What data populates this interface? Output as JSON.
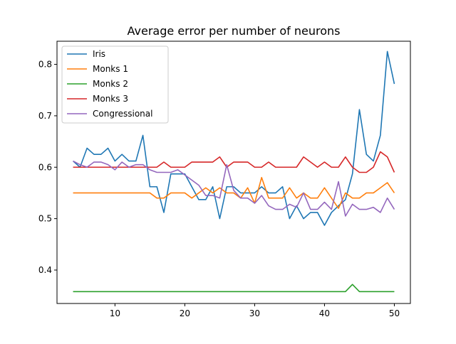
{
  "chart_data": {
    "type": "line",
    "title": "Average error per number of neurons",
    "xlabel": "",
    "ylabel": "",
    "xlim": [
      1.7,
      52.3
    ],
    "ylim": [
      0.335,
      0.845
    ],
    "xticks": [
      10,
      20,
      30,
      40,
      50
    ],
    "yticks": [
      0.4,
      0.5,
      0.6,
      0.7,
      0.8
    ],
    "legend_position": "top-left",
    "grid": false,
    "x": [
      4,
      5,
      6,
      7,
      8,
      9,
      10,
      11,
      12,
      13,
      14,
      15,
      16,
      17,
      18,
      19,
      20,
      21,
      22,
      23,
      24,
      25,
      26,
      27,
      28,
      29,
      30,
      31,
      32,
      33,
      34,
      35,
      36,
      37,
      38,
      39,
      40,
      41,
      42,
      43,
      44,
      45,
      46,
      47,
      48,
      49,
      50
    ],
    "series": [
      {
        "name": "Iris",
        "color": "#1f77b4",
        "values": [
          0.612,
          0.6,
          0.637,
          0.625,
          0.625,
          0.637,
          0.612,
          0.625,
          0.612,
          0.612,
          0.662,
          0.562,
          0.562,
          0.512,
          0.587,
          0.587,
          0.587,
          0.562,
          0.537,
          0.537,
          0.562,
          0.5,
          0.562,
          0.562,
          0.55,
          0.55,
          0.55,
          0.562,
          0.55,
          0.55,
          0.562,
          0.5,
          0.525,
          0.5,
          0.512,
          0.512,
          0.487,
          0.512,
          0.525,
          0.537,
          0.587,
          0.712,
          0.625,
          0.612,
          0.662,
          0.825,
          0.762
        ]
      },
      {
        "name": "Monks 1",
        "color": "#ff7f0e",
        "values": [
          0.55,
          0.55,
          0.55,
          0.55,
          0.55,
          0.55,
          0.55,
          0.55,
          0.55,
          0.55,
          0.55,
          0.55,
          0.54,
          0.54,
          0.55,
          0.55,
          0.55,
          0.54,
          0.55,
          0.56,
          0.55,
          0.56,
          0.55,
          0.55,
          0.54,
          0.56,
          0.53,
          0.58,
          0.54,
          0.54,
          0.54,
          0.56,
          0.54,
          0.55,
          0.54,
          0.54,
          0.56,
          0.54,
          0.52,
          0.55,
          0.54,
          0.54,
          0.55,
          0.55,
          0.56,
          0.57,
          0.55
        ]
      },
      {
        "name": "Monks 2",
        "color": "#2ca02c",
        "values": [
          0.358,
          0.358,
          0.358,
          0.358,
          0.358,
          0.358,
          0.358,
          0.358,
          0.358,
          0.358,
          0.358,
          0.358,
          0.358,
          0.358,
          0.358,
          0.358,
          0.358,
          0.358,
          0.358,
          0.358,
          0.358,
          0.358,
          0.358,
          0.358,
          0.358,
          0.358,
          0.358,
          0.358,
          0.358,
          0.358,
          0.358,
          0.358,
          0.358,
          0.358,
          0.358,
          0.358,
          0.358,
          0.358,
          0.358,
          0.358,
          0.372,
          0.358,
          0.358,
          0.358,
          0.358,
          0.358,
          0.358
        ]
      },
      {
        "name": "Monks 3",
        "color": "#d62728",
        "values": [
          0.6,
          0.6,
          0.6,
          0.6,
          0.6,
          0.6,
          0.6,
          0.6,
          0.6,
          0.6,
          0.6,
          0.6,
          0.6,
          0.61,
          0.6,
          0.6,
          0.6,
          0.61,
          0.61,
          0.61,
          0.61,
          0.62,
          0.6,
          0.61,
          0.61,
          0.61,
          0.6,
          0.6,
          0.61,
          0.6,
          0.6,
          0.6,
          0.6,
          0.62,
          0.61,
          0.6,
          0.61,
          0.6,
          0.6,
          0.62,
          0.6,
          0.59,
          0.59,
          0.6,
          0.63,
          0.62,
          0.59
        ]
      },
      {
        "name": "Congressional",
        "color": "#9467bd",
        "values": [
          0.612,
          0.605,
          0.6,
          0.61,
          0.61,
          0.605,
          0.595,
          0.61,
          0.6,
          0.605,
          0.605,
          0.595,
          0.59,
          0.59,
          0.59,
          0.595,
          0.585,
          0.575,
          0.565,
          0.545,
          0.545,
          0.54,
          0.605,
          0.555,
          0.54,
          0.54,
          0.53,
          0.545,
          0.525,
          0.518,
          0.518,
          0.528,
          0.522,
          0.55,
          0.518,
          0.518,
          0.532,
          0.518,
          0.572,
          0.505,
          0.528,
          0.518,
          0.518,
          0.522,
          0.512,
          0.54,
          0.518
        ]
      }
    ]
  }
}
